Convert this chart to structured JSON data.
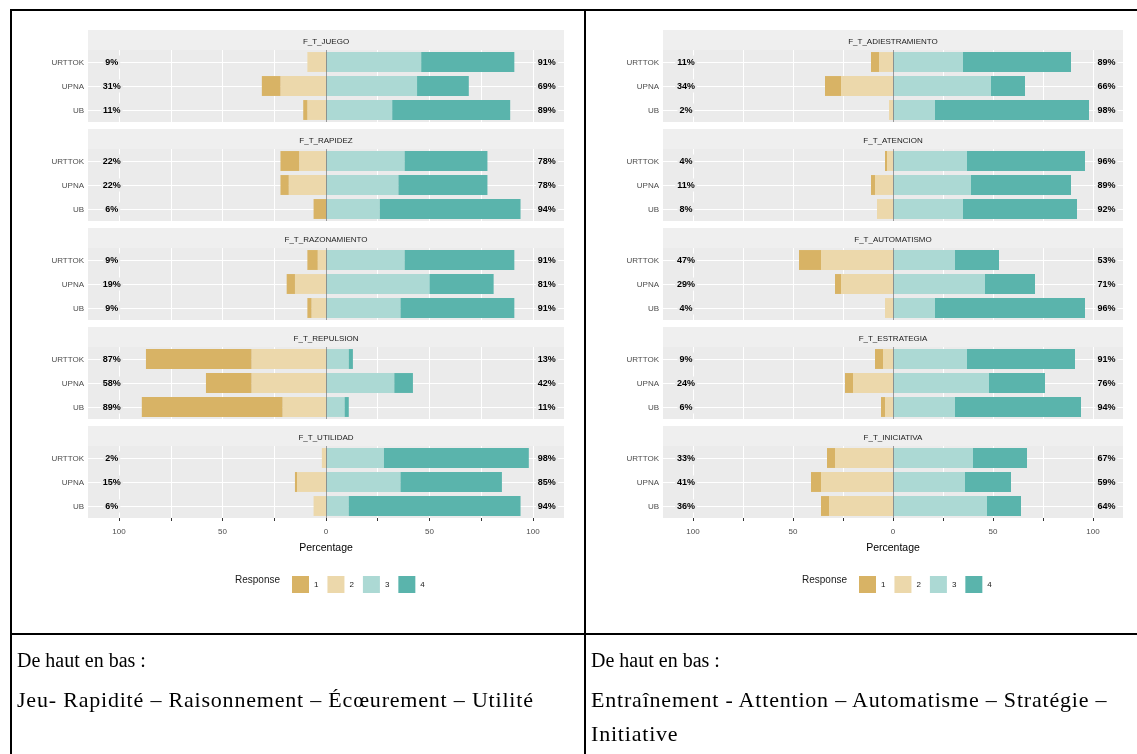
{
  "chart_data": [
    {
      "type": "bar",
      "title": "F_T_JUEGO",
      "orientation": "horizontal",
      "stacked": true,
      "categories": [
        "URTTOK",
        "UPNA",
        "UB"
      ],
      "series": [
        {
          "color": "#ecd8ab",
          "values": [
            -9,
            -22,
            -9
          ]
        },
        {
          "color": "#d8b365",
          "values": [
            0,
            -9,
            -2
          ]
        },
        {
          "color": "#acd9d4",
          "values": [
            46,
            44,
            32
          ]
        },
        {
          "color": "#5ab4ac",
          "values": [
            45,
            25,
            57
          ]
        }
      ],
      "xlim": [
        -115,
        115
      ],
      "xticks": [
        -100,
        -75,
        -50,
        -25,
        0,
        25,
        50,
        75,
        100
      ],
      "tick_labels": "y",
      "grid": true,
      "ref_lines": [
        {
          "axis": "x",
          "value": 0,
          "color": "#808080"
        }
      ],
      "annotations": [
        "9%",
        "91%",
        "31%",
        "69%",
        "11%",
        "89%"
      ]
    },
    {
      "type": "bar",
      "title": "F_T_RAPIDEZ",
      "orientation": "horizontal",
      "stacked": true,
      "categories": [
        "URTTOK",
        "UPNA",
        "UB"
      ],
      "series": [
        {
          "color": "#ecd8ab",
          "values": [
            -13,
            -18,
            0
          ]
        },
        {
          "color": "#d8b365",
          "values": [
            -9,
            -4,
            -6
          ]
        },
        {
          "color": "#acd9d4",
          "values": [
            38,
            35,
            26
          ]
        },
        {
          "color": "#5ab4ac",
          "values": [
            40,
            43,
            68
          ]
        }
      ],
      "xlim": [
        -115,
        115
      ],
      "xticks": [
        -100,
        -75,
        -50,
        -25,
        0,
        25,
        50,
        75,
        100
      ],
      "tick_labels": "y",
      "grid": true,
      "ref_lines": [
        {
          "axis": "x",
          "value": 0,
          "color": "#808080"
        }
      ],
      "annotations": [
        "22%",
        "78%",
        "22%",
        "78%",
        "6%",
        "94%"
      ]
    },
    {
      "type": "bar",
      "title": "F_T_RAZONAMIENTO",
      "orientation": "horizontal",
      "stacked": true,
      "categories": [
        "URTTOK",
        "UPNA",
        "UB"
      ],
      "series": [
        {
          "color": "#ecd8ab",
          "values": [
            -4,
            -15,
            -7
          ]
        },
        {
          "color": "#d8b365",
          "values": [
            -5,
            -4,
            -2
          ]
        },
        {
          "color": "#acd9d4",
          "values": [
            38,
            50,
            36
          ]
        },
        {
          "color": "#5ab4ac",
          "values": [
            53,
            31,
            55
          ]
        }
      ],
      "xlim": [
        -115,
        115
      ],
      "xticks": [
        -100,
        -75,
        -50,
        -25,
        0,
        25,
        50,
        75,
        100
      ],
      "tick_labels": "y",
      "grid": true,
      "ref_lines": [
        {
          "axis": "x",
          "value": 0,
          "color": "#808080"
        }
      ],
      "annotations": [
        "9%",
        "91%",
        "19%",
        "81%",
        "9%",
        "91%"
      ]
    },
    {
      "type": "bar",
      "title": "F_T_REPULSION",
      "orientation": "horizontal",
      "stacked": true,
      "categories": [
        "URTTOK",
        "UPNA",
        "UB"
      ],
      "series": [
        {
          "color": "#ecd8ab",
          "values": [
            -36,
            -36,
            -21
          ]
        },
        {
          "color": "#d8b365",
          "values": [
            -51,
            -22,
            -68
          ]
        },
        {
          "color": "#acd9d4",
          "values": [
            11,
            33,
            9
          ]
        },
        {
          "color": "#5ab4ac",
          "values": [
            2,
            9,
            2
          ]
        }
      ],
      "xlim": [
        -115,
        115
      ],
      "xticks": [
        -100,
        -75,
        -50,
        -25,
        0,
        25,
        50,
        75,
        100
      ],
      "tick_labels": "y",
      "grid": true,
      "ref_lines": [
        {
          "axis": "x",
          "value": 0,
          "color": "#808080"
        }
      ],
      "annotations": [
        "87%",
        "13%",
        "58%",
        "42%",
        "89%",
        "11%"
      ]
    },
    {
      "type": "bar",
      "title": "F_T_UTILIDAD",
      "orientation": "horizontal",
      "stacked": true,
      "categories": [
        "URTTOK",
        "UPNA",
        "UB"
      ],
      "series": [
        {
          "name": "2",
          "color": "#ecd8ab",
          "values": [
            -2,
            -14,
            -6
          ]
        },
        {
          "name": "1",
          "color": "#d8b365",
          "values": [
            0,
            -1,
            0
          ]
        },
        {
          "name": "3",
          "color": "#acd9d4",
          "values": [
            28,
            36,
            11
          ]
        },
        {
          "name": "4",
          "color": "#5ab4ac",
          "values": [
            70,
            49,
            83
          ]
        }
      ],
      "xlim": [
        -115,
        115
      ],
      "xticks": [
        {
          "value": -100,
          "label": "100"
        },
        {
          "value": -75,
          "label": null
        },
        {
          "value": -50,
          "label": "50"
        },
        {
          "value": -25,
          "label": null
        },
        0,
        {
          "value": 25,
          "label": null
        },
        50,
        {
          "value": 75,
          "label": null
        },
        100
      ],
      "xlabel": "Percentage",
      "legend": "bottom",
      "legend_title": "Response",
      "grid": true,
      "ref_lines": [
        {
          "axis": "x",
          "value": 0,
          "color": "#808080"
        }
      ],
      "annotations": [
        "2%",
        "98%",
        "15%",
        "85%",
        "6%",
        "94%"
      ]
    },
    {
      "type": "bar",
      "title": "F_T_ADIESTRAMIENTO",
      "orientation": "horizontal",
      "stacked": true,
      "categories": [
        "URTTOK",
        "UPNA",
        "UB"
      ],
      "series": [
        {
          "color": "#ecd8ab",
          "values": [
            -7,
            -26,
            -2
          ]
        },
        {
          "color": "#d8b365",
          "values": [
            -4,
            -8,
            0
          ]
        },
        {
          "color": "#acd9d4",
          "values": [
            35,
            49,
            21
          ]
        },
        {
          "color": "#5ab4ac",
          "values": [
            54,
            17,
            77
          ]
        }
      ],
      "xlim": [
        -115,
        115
      ],
      "xticks": [
        -100,
        -75,
        -50,
        -25,
        0,
        25,
        50,
        75,
        100
      ],
      "tick_labels": "y",
      "grid": true,
      "ref_lines": [
        {
          "axis": "x",
          "value": 0,
          "color": "#808080"
        }
      ],
      "annotations": [
        "11%",
        "89%",
        "34%",
        "66%",
        "2%",
        "98%"
      ]
    },
    {
      "type": "bar",
      "title": "F_T_ATENCION",
      "orientation": "horizontal",
      "stacked": true,
      "categories": [
        "URTTOK",
        "UPNA",
        "UB"
      ],
      "series": [
        {
          "color": "#ecd8ab",
          "values": [
            -3,
            -9,
            -8
          ]
        },
        {
          "color": "#d8b365",
          "values": [
            -1,
            -2,
            0
          ]
        },
        {
          "color": "#acd9d4",
          "values": [
            37,
            39,
            35
          ]
        },
        {
          "color": "#5ab4ac",
          "values": [
            59,
            50,
            57
          ]
        }
      ],
      "xlim": [
        -115,
        115
      ],
      "xticks": [
        -100,
        -75,
        -50,
        -25,
        0,
        25,
        50,
        75,
        100
      ],
      "tick_labels": "y",
      "grid": true,
      "ref_lines": [
        {
          "axis": "x",
          "value": 0,
          "color": "#808080"
        }
      ],
      "annotations": [
        "4%",
        "96%",
        "11%",
        "89%",
        "8%",
        "92%"
      ]
    },
    {
      "type": "bar",
      "title": "F_T_AUTOMATISMO",
      "orientation": "horizontal",
      "stacked": true,
      "categories": [
        "URTTOK",
        "UPNA",
        "UB"
      ],
      "series": [
        {
          "color": "#ecd8ab",
          "values": [
            -36,
            -26,
            -4
          ]
        },
        {
          "color": "#d8b365",
          "values": [
            -11,
            -3,
            0
          ]
        },
        {
          "color": "#acd9d4",
          "values": [
            31,
            46,
            21
          ]
        },
        {
          "color": "#5ab4ac",
          "values": [
            22,
            25,
            75
          ]
        }
      ],
      "xlim": [
        -115,
        115
      ],
      "xticks": [
        -100,
        -75,
        -50,
        -25,
        0,
        25,
        50,
        75,
        100
      ],
      "tick_labels": "y",
      "grid": true,
      "ref_lines": [
        {
          "axis": "x",
          "value": 0,
          "color": "#808080"
        }
      ],
      "annotations": [
        "47%",
        "53%",
        "29%",
        "71%",
        "4%",
        "96%"
      ]
    },
    {
      "type": "bar",
      "title": "F_T_ESTRATEGIA",
      "orientation": "horizontal",
      "stacked": true,
      "categories": [
        "URTTOK",
        "UPNA",
        "UB"
      ],
      "series": [
        {
          "color": "#ecd8ab",
          "values": [
            -5,
            -20,
            -4
          ]
        },
        {
          "color": "#d8b365",
          "values": [
            -4,
            -4,
            -2
          ]
        },
        {
          "color": "#acd9d4",
          "values": [
            37,
            48,
            31
          ]
        },
        {
          "color": "#5ab4ac",
          "values": [
            54,
            28,
            63
          ]
        }
      ],
      "xlim": [
        -115,
        115
      ],
      "xticks": [
        -100,
        -75,
        -50,
        -25,
        0,
        25,
        50,
        75,
        100
      ],
      "tick_labels": "y",
      "grid": true,
      "ref_lines": [
        {
          "axis": "x",
          "value": 0,
          "color": "#808080"
        }
      ],
      "annotations": [
        "9%",
        "91%",
        "24%",
        "76%",
        "6%",
        "94%"
      ]
    },
    {
      "type": "bar",
      "title": "F_T_INICIATIVA",
      "orientation": "horizontal",
      "stacked": true,
      "categories": [
        "URTTOK",
        "UPNA",
        "UB"
      ],
      "series": [
        {
          "name": "2",
          "color": "#ecd8ab",
          "values": [
            -29,
            -36,
            -32
          ]
        },
        {
          "name": "1",
          "color": "#d8b365",
          "values": [
            -4,
            -5,
            -4
          ]
        },
        {
          "name": "3",
          "color": "#acd9d4",
          "values": [
            40,
            36,
            47
          ]
        },
        {
          "name": "4",
          "color": "#5ab4ac",
          "values": [
            27,
            23,
            17
          ]
        }
      ],
      "xlim": [
        -115,
        115
      ],
      "xticks": [
        {
          "value": -100,
          "label": "100"
        },
        {
          "value": -75,
          "label": null
        },
        {
          "value": -50,
          "label": "50"
        },
        {
          "value": -25,
          "label": null
        },
        0,
        {
          "value": 25,
          "label": null
        },
        50,
        {
          "value": 75,
          "label": null
        },
        100
      ],
      "xlabel": "Percentage",
      "legend": "bottom",
      "legend_title": "Response",
      "grid": true,
      "ref_lines": [
        {
          "axis": "x",
          "value": 0,
          "color": "#808080"
        }
      ],
      "annotations": [
        "33%",
        "67%",
        "41%",
        "59%",
        "36%",
        "64%"
      ]
    },
    {
      "type": "other",
      "title": "De haut en bas :",
      "annotations": [
        "Jeu- Rapidité – Raisonnement – Écœurement – Utilité"
      ]
    },
    {
      "type": "other",
      "title": "De haut en bas :",
      "annotations": [
        "Entraînement - Attention – Automatisme – Stratégie – Initiative"
      ]
    }
  ]
}
